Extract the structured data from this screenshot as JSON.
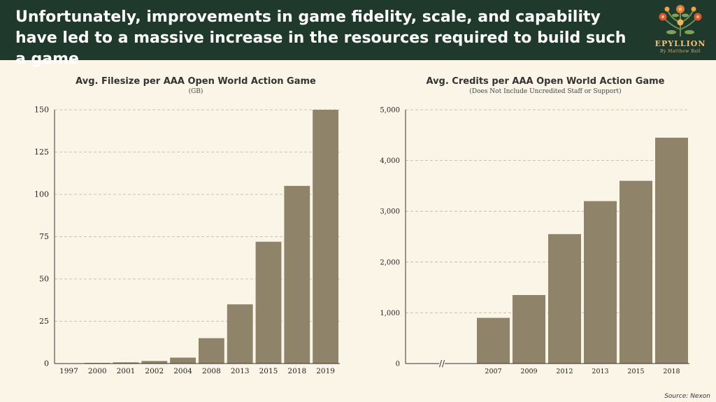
{
  "header": {
    "headline": "Unfortunately, improvements in game fidelity, scale, and capability have led to a massive increase in the resources required to build such a game",
    "brand": "EPYLLION",
    "byline": "By Matthew Ball"
  },
  "source": "Source: Nexon",
  "colors": {
    "header_bg": "#1f3a2c",
    "bar": "#8f836a",
    "background": "#fbf5e8"
  },
  "chart_data": [
    {
      "type": "bar",
      "title": "Avg. Filesize per AAA Open World Action Game",
      "subtitle": "(GB)",
      "categories": [
        "1997",
        "2000",
        "2001",
        "2002",
        "2004",
        "2008",
        "2013",
        "2015",
        "2018",
        "2019"
      ],
      "values": [
        0.1,
        0.4,
        0.7,
        1.5,
        3.5,
        15,
        35,
        72,
        105,
        150
      ],
      "ylim": [
        0,
        150
      ],
      "yticks": [
        "0",
        "25",
        "50",
        "75",
        "100",
        "125",
        "150"
      ],
      "ytick_values": [
        0,
        25,
        50,
        75,
        100,
        125,
        150
      ],
      "grid": true
    },
    {
      "type": "bar",
      "title": "Avg. Credits per AAA Open World Action Game",
      "subtitle": "(Does Not Include Uncredited Staff or Support)",
      "categories": [
        "2007",
        "2009",
        "2012",
        "2013",
        "2015",
        "2018"
      ],
      "values": [
        900,
        1350,
        2550,
        3200,
        3600,
        4450
      ],
      "ylim": [
        0,
        5000
      ],
      "yticks": [
        "0",
        "1,000",
        "2,000",
        "3,000",
        "4,000",
        "5,000"
      ],
      "ytick_values": [
        0,
        1000,
        2000,
        3000,
        4000,
        5000
      ],
      "grid": true,
      "axis_break": "//"
    }
  ]
}
